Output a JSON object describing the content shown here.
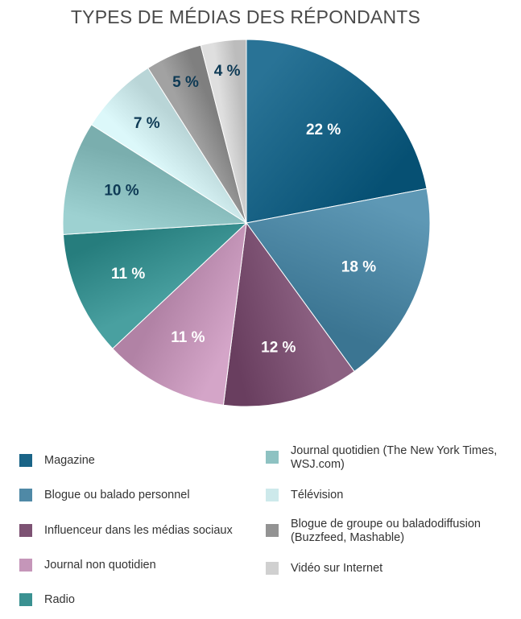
{
  "chart_data": {
    "type": "pie",
    "title": "TYPES DE MÉDIAS DES RÉPONDANTS",
    "start_angle": "12 o'clock",
    "direction": "clockwise",
    "legend_position": "bottom",
    "slices": [
      {
        "name": "Magazine",
        "value": 22,
        "label": "22 %",
        "color": "#1a6487",
        "label_color": "#ffffff"
      },
      {
        "name": "Blogue ou balado personnel",
        "value": 18,
        "label": "18 %",
        "color": "#4f89a6",
        "label_color": "#ffffff"
      },
      {
        "name": "Influenceur dans les médias sociaux",
        "value": 12,
        "label": "12 %",
        "color": "#7d5273",
        "label_color": "#ffffff"
      },
      {
        "name": "Journal non quotidien",
        "value": 11,
        "label": "11 %",
        "color": "#c596b9",
        "label_color": "#ffffff"
      },
      {
        "name": "Radio",
        "value": 11,
        "label": "11 %",
        "color": "#3a9191",
        "label_color": "#ffffff"
      },
      {
        "name": "Journal quotidien (The New York Times,\nWSJ.com)",
        "value": 10,
        "label": "10 %",
        "color": "#8ec2c2",
        "label_color": "#0e3a55"
      },
      {
        "name": "Télévision",
        "value": 7,
        "label": "7 %",
        "color": "#cde9eb",
        "label_color": "#0e3a55"
      },
      {
        "name": "Blogue de groupe ou baladodiffusion\n(Buzzfeed, Mashable)",
        "value": 5,
        "label": "5 %",
        "color": "#939393",
        "label_color": "#0e3a55"
      },
      {
        "name": "Vidéo sur Internet",
        "value": 4,
        "label": "4 %",
        "color": "#d0d0d0",
        "label_color": "#0e3a55"
      }
    ]
  }
}
